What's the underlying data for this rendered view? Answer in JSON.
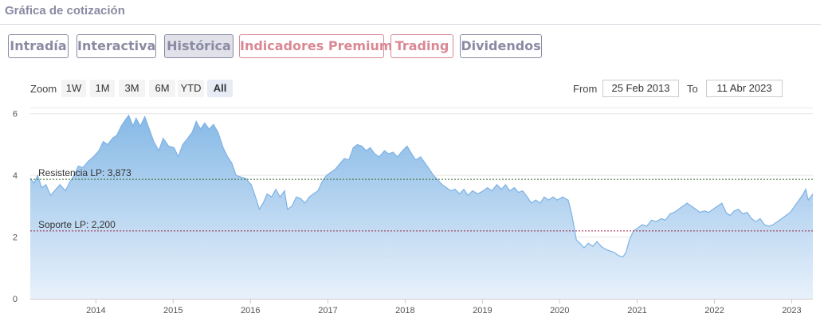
{
  "section_title": "Gráfica de cotización",
  "tabs": [
    {
      "label": "Intradía",
      "active": false,
      "premium": false
    },
    {
      "label": "Interactiva",
      "active": false,
      "premium": false
    },
    {
      "label": "Histórica",
      "active": true,
      "premium": false
    },
    {
      "label": "Indicadores Premium",
      "active": false,
      "premium": true
    },
    {
      "label": "Trading",
      "active": false,
      "premium": true
    },
    {
      "label": "Dividendos",
      "active": false,
      "premium": false
    }
  ],
  "zoom": {
    "label": "Zoom",
    "buttons": [
      "1W",
      "1M",
      "3M",
      "6M",
      "YTD",
      "All"
    ],
    "selected": "All"
  },
  "range": {
    "from_label": "From",
    "from_value": "25 Feb 2013",
    "to_label": "To",
    "to_value": "11 Abr 2023"
  },
  "colors": {
    "line": "#7fb2e5",
    "fill_top": "#86b9e6",
    "fill_bottom": "#e8f1fb",
    "resistance": "#2f6b2f",
    "support": "#a02040",
    "tab_border": "#8a8aa3",
    "premium": "#d98894"
  },
  "chart_data": {
    "type": "area",
    "x_start": "2013-02-25",
    "x_end": "2023-04-11",
    "x_ticks": [
      "2014",
      "2015",
      "2016",
      "2017",
      "2018",
      "2019",
      "2020",
      "2021",
      "2022",
      "2023"
    ],
    "y_ticks": [
      0,
      2,
      4,
      6
    ],
    "ylim": [
      0,
      6.2
    ],
    "grid": true,
    "legend": "none",
    "reference_lines": [
      {
        "label": "Resistencia LP: 3,873",
        "value": 3.873
      },
      {
        "label": "Soporte LP: 2,200",
        "value": 2.2
      }
    ],
    "series": [
      {
        "points": [
          [
            "2013-02-25",
            3.9
          ],
          [
            "2013-03-15",
            3.75
          ],
          [
            "2013-04-01",
            4.0
          ],
          [
            "2013-04-20",
            3.6
          ],
          [
            "2013-05-10",
            3.7
          ],
          [
            "2013-06-01",
            3.35
          ],
          [
            "2013-06-20",
            3.5
          ],
          [
            "2013-07-15",
            3.7
          ],
          [
            "2013-08-10",
            3.5
          ],
          [
            "2013-09-01",
            3.8
          ],
          [
            "2013-09-20",
            4.0
          ],
          [
            "2013-10-10",
            4.3
          ],
          [
            "2013-11-01",
            4.25
          ],
          [
            "2013-11-25",
            4.45
          ],
          [
            "2013-12-20",
            4.6
          ],
          [
            "2014-01-15",
            4.8
          ],
          [
            "2014-02-05",
            5.1
          ],
          [
            "2014-02-25",
            5.0
          ],
          [
            "2014-03-20",
            5.2
          ],
          [
            "2014-04-10",
            5.3
          ],
          [
            "2014-05-01",
            5.6
          ],
          [
            "2014-05-20",
            5.8
          ],
          [
            "2014-06-05",
            5.95
          ],
          [
            "2014-06-25",
            5.6
          ],
          [
            "2014-07-10",
            5.85
          ],
          [
            "2014-07-30",
            5.6
          ],
          [
            "2014-08-20",
            5.9
          ],
          [
            "2014-09-10",
            5.5
          ],
          [
            "2014-10-01",
            5.1
          ],
          [
            "2014-10-25",
            4.8
          ],
          [
            "2014-11-15",
            5.2
          ],
          [
            "2014-12-10",
            4.95
          ],
          [
            "2015-01-05",
            4.9
          ],
          [
            "2015-01-25",
            4.6
          ],
          [
            "2015-02-15",
            5.0
          ],
          [
            "2015-03-10",
            5.2
          ],
          [
            "2015-04-01",
            5.4
          ],
          [
            "2015-04-20",
            5.75
          ],
          [
            "2015-05-10",
            5.5
          ],
          [
            "2015-05-30",
            5.7
          ],
          [
            "2015-06-20",
            5.5
          ],
          [
            "2015-07-10",
            5.65
          ],
          [
            "2015-08-01",
            5.4
          ],
          [
            "2015-08-25",
            4.9
          ],
          [
            "2015-09-15",
            4.6
          ],
          [
            "2015-10-05",
            4.4
          ],
          [
            "2015-10-25",
            4.0
          ],
          [
            "2015-11-15",
            3.95
          ],
          [
            "2015-12-10",
            3.9
          ],
          [
            "2016-01-05",
            3.7
          ],
          [
            "2016-01-25",
            3.3
          ],
          [
            "2016-02-12",
            2.9
          ],
          [
            "2016-03-01",
            3.1
          ],
          [
            "2016-03-20",
            3.4
          ],
          [
            "2016-04-10",
            3.3
          ],
          [
            "2016-04-30",
            3.55
          ],
          [
            "2016-05-20",
            3.3
          ],
          [
            "2016-06-10",
            3.5
          ],
          [
            "2016-06-24",
            2.9
          ],
          [
            "2016-07-15",
            3.0
          ],
          [
            "2016-08-05",
            3.3
          ],
          [
            "2016-08-25",
            3.25
          ],
          [
            "2016-09-15",
            3.1
          ],
          [
            "2016-10-05",
            3.3
          ],
          [
            "2016-10-25",
            3.4
          ],
          [
            "2016-11-15",
            3.5
          ],
          [
            "2016-12-05",
            3.8
          ],
          [
            "2016-12-25",
            4.0
          ],
          [
            "2017-01-15",
            4.1
          ],
          [
            "2017-02-05",
            4.2
          ],
          [
            "2017-03-01",
            4.4
          ],
          [
            "2017-03-20",
            4.55
          ],
          [
            "2017-04-10",
            4.5
          ],
          [
            "2017-05-01",
            4.9
          ],
          [
            "2017-05-20",
            5.0
          ],
          [
            "2017-06-10",
            4.95
          ],
          [
            "2017-07-01",
            4.8
          ],
          [
            "2017-07-20",
            4.9
          ],
          [
            "2017-08-10",
            4.7
          ],
          [
            "2017-09-01",
            4.6
          ],
          [
            "2017-09-25",
            4.8
          ],
          [
            "2017-10-15",
            4.7
          ],
          [
            "2017-11-05",
            4.75
          ],
          [
            "2017-11-25",
            4.6
          ],
          [
            "2017-12-20",
            4.8
          ],
          [
            "2018-01-10",
            4.95
          ],
          [
            "2018-02-01",
            4.7
          ],
          [
            "2018-02-20",
            4.5
          ],
          [
            "2018-03-15",
            4.6
          ],
          [
            "2018-04-05",
            4.4
          ],
          [
            "2018-04-25",
            4.2
          ],
          [
            "2018-05-15",
            4.0
          ],
          [
            "2018-06-05",
            3.85
          ],
          [
            "2018-06-25",
            3.7
          ],
          [
            "2018-07-15",
            3.6
          ],
          [
            "2018-08-05",
            3.5
          ],
          [
            "2018-08-25",
            3.55
          ],
          [
            "2018-09-15",
            3.4
          ],
          [
            "2018-10-05",
            3.55
          ],
          [
            "2018-10-25",
            3.35
          ],
          [
            "2018-11-15",
            3.5
          ],
          [
            "2018-12-10",
            3.4
          ],
          [
            "2019-01-05",
            3.5
          ],
          [
            "2019-01-25",
            3.6
          ],
          [
            "2019-02-15",
            3.5
          ],
          [
            "2019-03-10",
            3.7
          ],
          [
            "2019-04-01",
            3.55
          ],
          [
            "2019-04-20",
            3.7
          ],
          [
            "2019-05-10",
            3.5
          ],
          [
            "2019-06-01",
            3.6
          ],
          [
            "2019-06-20",
            3.45
          ],
          [
            "2019-07-10",
            3.5
          ],
          [
            "2019-08-01",
            3.3
          ],
          [
            "2019-08-20",
            3.1
          ],
          [
            "2019-09-10",
            3.2
          ],
          [
            "2019-10-01",
            3.1
          ],
          [
            "2019-10-20",
            3.3
          ],
          [
            "2019-11-10",
            3.2
          ],
          [
            "2019-12-01",
            3.3
          ],
          [
            "2019-12-20",
            3.2
          ],
          [
            "2020-01-15",
            3.3
          ],
          [
            "2020-02-10",
            3.2
          ],
          [
            "2020-02-25",
            2.8
          ],
          [
            "2020-03-10",
            2.3
          ],
          [
            "2020-03-20",
            1.9
          ],
          [
            "2020-04-05",
            1.8
          ],
          [
            "2020-04-25",
            1.65
          ],
          [
            "2020-05-15",
            1.8
          ],
          [
            "2020-06-05",
            1.7
          ],
          [
            "2020-06-25",
            1.85
          ],
          [
            "2020-07-15",
            1.7
          ],
          [
            "2020-08-05",
            1.6
          ],
          [
            "2020-08-25",
            1.55
          ],
          [
            "2020-09-15",
            1.5
          ],
          [
            "2020-10-05",
            1.4
          ],
          [
            "2020-10-25",
            1.35
          ],
          [
            "2020-11-09",
            1.5
          ],
          [
            "2020-11-25",
            1.9
          ],
          [
            "2020-12-15",
            2.2
          ],
          [
            "2021-01-05",
            2.3
          ],
          [
            "2021-01-25",
            2.4
          ],
          [
            "2021-02-15",
            2.35
          ],
          [
            "2021-03-10",
            2.55
          ],
          [
            "2021-04-01",
            2.5
          ],
          [
            "2021-04-25",
            2.6
          ],
          [
            "2021-05-15",
            2.55
          ],
          [
            "2021-06-05",
            2.75
          ],
          [
            "2021-06-25",
            2.8
          ],
          [
            "2021-07-15",
            2.9
          ],
          [
            "2021-08-05",
            3.0
          ],
          [
            "2021-08-25",
            3.1
          ],
          [
            "2021-09-15",
            3.0
          ],
          [
            "2021-10-05",
            2.9
          ],
          [
            "2021-10-25",
            2.8
          ],
          [
            "2021-11-15",
            2.85
          ],
          [
            "2021-12-05",
            2.8
          ],
          [
            "2021-12-25",
            2.9
          ],
          [
            "2022-01-15",
            3.0
          ],
          [
            "2022-02-05",
            3.1
          ],
          [
            "2022-02-25",
            2.8
          ],
          [
            "2022-03-15",
            2.7
          ],
          [
            "2022-04-05",
            2.85
          ],
          [
            "2022-04-25",
            2.9
          ],
          [
            "2022-05-15",
            2.75
          ],
          [
            "2022-06-05",
            2.8
          ],
          [
            "2022-06-25",
            2.6
          ],
          [
            "2022-07-15",
            2.5
          ],
          [
            "2022-08-05",
            2.6
          ],
          [
            "2022-08-25",
            2.4
          ],
          [
            "2022-09-15",
            2.35
          ],
          [
            "2022-10-05",
            2.4
          ],
          [
            "2022-10-25",
            2.5
          ],
          [
            "2022-11-15",
            2.6
          ],
          [
            "2022-12-05",
            2.7
          ],
          [
            "2022-12-25",
            2.8
          ],
          [
            "2023-01-15",
            3.0
          ],
          [
            "2023-02-05",
            3.2
          ],
          [
            "2023-02-25",
            3.4
          ],
          [
            "2023-03-08",
            3.55
          ],
          [
            "2023-03-20",
            3.2
          ],
          [
            "2023-04-01",
            3.3
          ],
          [
            "2023-04-11",
            3.4
          ]
        ]
      }
    ]
  }
}
